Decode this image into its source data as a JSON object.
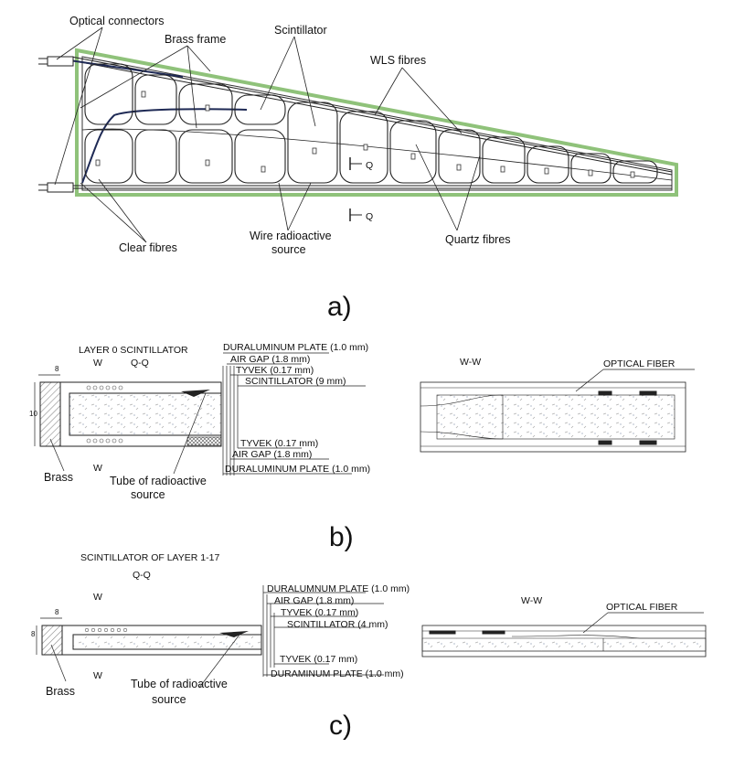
{
  "panel_a": {
    "tag": "a)",
    "labels": {
      "optical_connectors": "Optical connectors",
      "brass_frame": "Brass frame",
      "scintillator": "Scintillator",
      "wls_fibres": "WLS fibres",
      "clear_fibres": "Clear fibres",
      "wire_source_1": "Wire radioactive",
      "wire_source_2": "source",
      "quartz_fibres": "Quartz fibres",
      "section_q": "Q"
    }
  },
  "panel_b": {
    "tag": "b)",
    "title": "LAYER 0 SCINTILLATOR",
    "section_qq": "Q-Q",
    "section_ww": "W-W",
    "w_mark": "W",
    "dim_top": "8",
    "dim_side": "10",
    "brass": "Brass",
    "tube_1": "Tube of radioactive",
    "tube_2": "source",
    "optical_fiber": "OPTICAL FIBER",
    "layers_top": [
      "DURALUMINUM PLATE (1.0 mm)",
      "AIR GAP  (1.8 mm)",
      "TYVEK (0.17 mm)",
      "SCINTILLATOR (9 mm)"
    ],
    "layers_bottom": [
      "TYVEK (0.17 mm)",
      "AIR GAP  (1.8 mm)",
      "DURALUMINUM PLATE   (1.0 mm)"
    ]
  },
  "panel_c": {
    "tag": "c)",
    "title": "SCINTILLATOR OF LAYER 1-17",
    "section_qq": "Q-Q",
    "section_ww": "W-W",
    "w_mark": "W",
    "dim_top": "8",
    "dim_side": "8",
    "brass": "Brass",
    "tube_1": "Tube of radioactive",
    "tube_2": "source",
    "optical_fiber": "OPTICAL FIBER",
    "layers_top": [
      "DURALUMNUM PLATE (1.0 mm)",
      "AIR GAP  (1.8 mm)",
      "TYVEK (0.17 mm)",
      "SCINTILLATOR (4 mm)"
    ],
    "layers_bottom": [
      "TYVEK  (0.17 mm)",
      "DURAMINUM PLATE   (1.0 mm)"
    ]
  },
  "colors": {
    "frame_green": "#8fc27a",
    "line": "#222222",
    "fibre_dark": "#1f2a55",
    "hatch": "#9a9a9a"
  }
}
